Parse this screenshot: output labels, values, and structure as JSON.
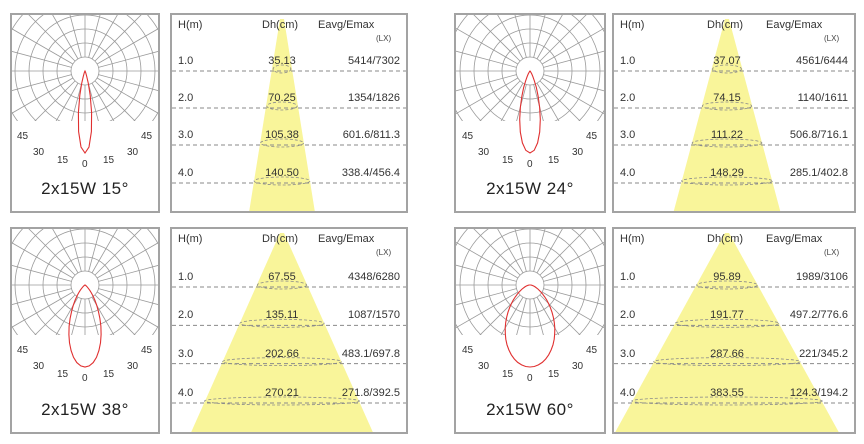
{
  "colors": {
    "beam": "#f9f59a",
    "curve": "#e03030",
    "grid": "#9a9a9a",
    "dash": "#8a8a8a"
  },
  "table_headers": {
    "h": "H(m)",
    "dh": "Dh(cm)",
    "e": "Eavg/Emax",
    "unit": "(LX)"
  },
  "polar_labels": {
    "45": "45",
    "30": "30",
    "15": "15",
    "0": "0"
  },
  "modules": [
    {
      "caption": "2x15W 15°",
      "beam_angle_deg": 15,
      "rows": [
        {
          "h": "1.0",
          "dh": "35.13",
          "e": "5414/7302"
        },
        {
          "h": "2.0",
          "dh": "70.25",
          "e": "1354/1826"
        },
        {
          "h": "3.0",
          "dh": "105.38",
          "e": "601.6/811.3"
        },
        {
          "h": "4.0",
          "dh": "140.50",
          "e": "338.4/456.4"
        }
      ]
    },
    {
      "caption": "2x15W 24°",
      "beam_angle_deg": 24,
      "rows": [
        {
          "h": "1.0",
          "dh": "37.07",
          "e": "4561/6444"
        },
        {
          "h": "2.0",
          "dh": "74.15",
          "e": "1140/1611"
        },
        {
          "h": "3.0",
          "dh": "111.22",
          "e": "506.8/716.1"
        },
        {
          "h": "4.0",
          "dh": "148.29",
          "e": "285.1/402.8"
        }
      ]
    },
    {
      "caption": "2x15W 38°",
      "beam_angle_deg": 38,
      "rows": [
        {
          "h": "1.0",
          "dh": "67.55",
          "e": "4348/6280"
        },
        {
          "h": "2.0",
          "dh": "135.11",
          "e": "1087/1570"
        },
        {
          "h": "3.0",
          "dh": "202.66",
          "e": "483.1/697.8"
        },
        {
          "h": "4.0",
          "dh": "270.21",
          "e": "271.8/392.5"
        }
      ]
    },
    {
      "caption": "2x15W 60°",
      "beam_angle_deg": 60,
      "rows": [
        {
          "h": "1.0",
          "dh": "95.89",
          "e": "1989/3106"
        },
        {
          "h": "2.0",
          "dh": "191.77",
          "e": "497.2/776.6"
        },
        {
          "h": "3.0",
          "dh": "287.66",
          "e": "221/345.2"
        },
        {
          "h": "4.0",
          "dh": "383.55",
          "e": "124.3/194.2"
        }
      ]
    }
  ]
}
